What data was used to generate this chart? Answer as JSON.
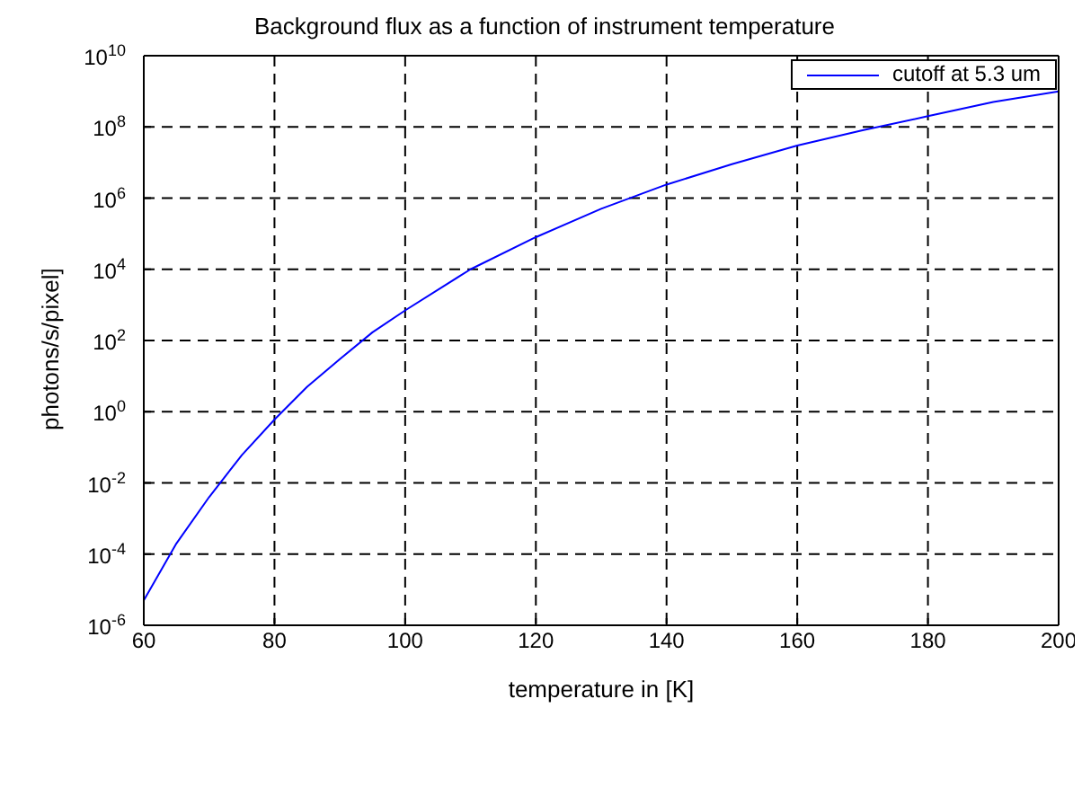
{
  "chart_data": {
    "type": "line",
    "title": "Background flux as a function of instrument temperature",
    "xlabel": "temperature in [K]",
    "ylabel": "photons/s/pixel]",
    "x": [
      60,
      65,
      70,
      75,
      80,
      85,
      90,
      95,
      100,
      110,
      120,
      130,
      140,
      150,
      160,
      170,
      180,
      190,
      200
    ],
    "series": [
      {
        "name": "cutoff at 5.3 um",
        "color": "#0000ff",
        "values": [
          5e-06,
          0.0002,
          0.004,
          0.06,
          0.6,
          5,
          30,
          170,
          700,
          10000.0,
          80000.0,
          500000.0,
          2400000.0,
          9000000.0,
          30000000.0,
          80000000.0,
          200000000.0,
          500000000.0,
          1000000000.0
        ]
      }
    ],
    "log": "y",
    "xlim": [
      60,
      200
    ],
    "xticks": [
      60,
      80,
      100,
      120,
      140,
      160,
      180,
      200
    ],
    "ylim": [
      1e-06,
      10000000000.0
    ],
    "yticks": [
      {
        "value": 1e-06,
        "label": "10$^{-6}$"
      },
      {
        "value": 0.0001,
        "label": "10$^{-4}$"
      },
      {
        "value": 0.01,
        "label": "10$^{-2}$"
      },
      {
        "value": 1,
        "label": "10$^{0}$"
      },
      {
        "value": 100,
        "label": "10$^{2}$"
      },
      {
        "value": 10000.0,
        "label": "10$^{4}$"
      },
      {
        "value": 1000000.0,
        "label": "10$^{6}$"
      },
      {
        "value": 100000000.0,
        "label": "10$^{8}$"
      },
      {
        "value": 10000000000.0,
        "label": "10$^{10}$"
      }
    ],
    "grid": true,
    "line_style": "solid",
    "marker": "none",
    "legend": "top right"
  }
}
